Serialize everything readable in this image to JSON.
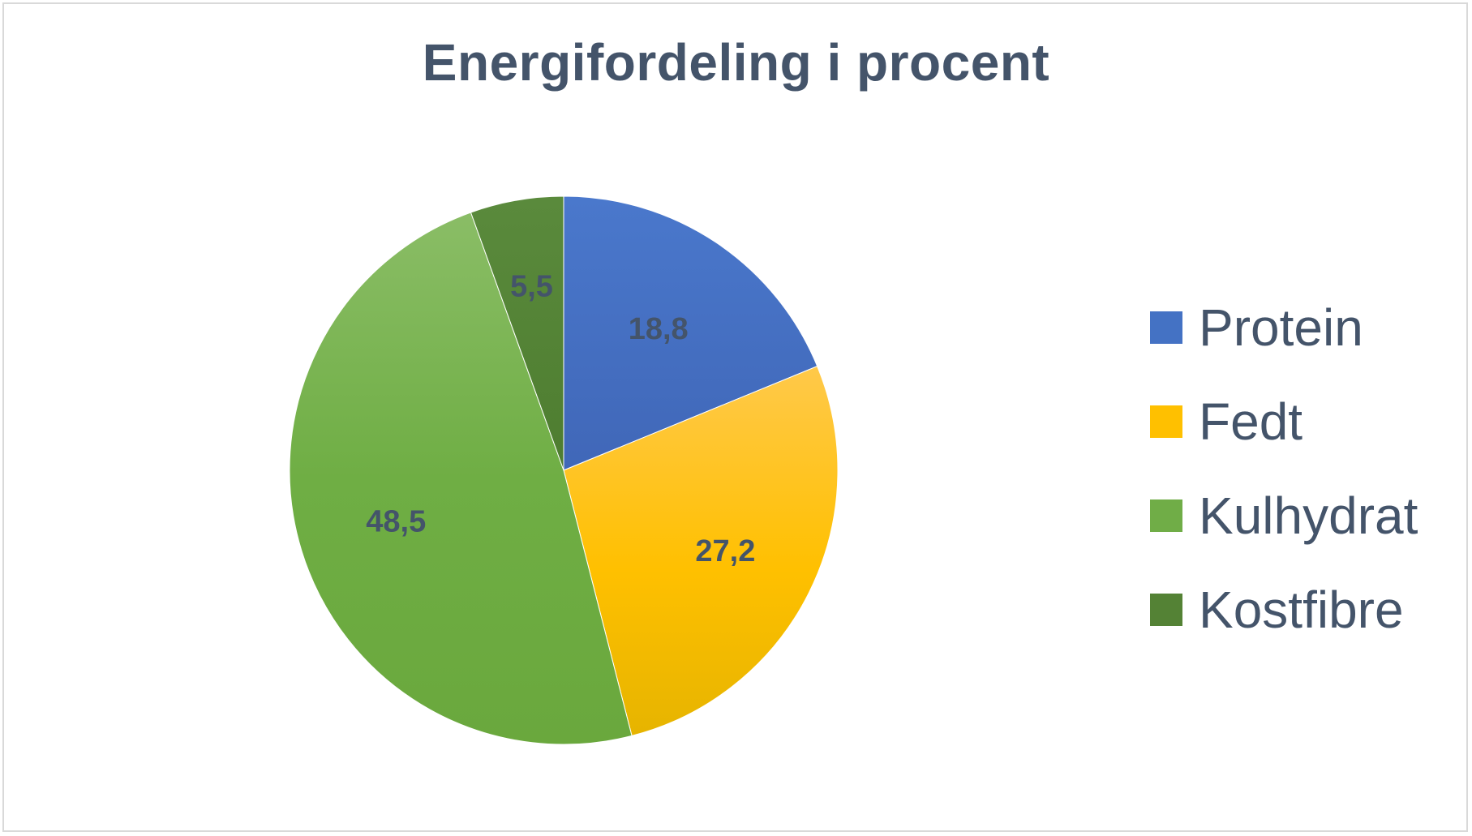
{
  "chart_data": {
    "type": "pie",
    "title": "Energifordeling i procent",
    "categories": [
      "Protein",
      "Fedt",
      "Kulhydrat",
      "Kostfibre"
    ],
    "values": [
      18.8,
      27.2,
      48.5,
      5.5
    ],
    "data_labels": [
      "18,8",
      "27,2",
      "48,5",
      "5,5"
    ],
    "colors": [
      "#4472c4",
      "#ffc000",
      "#70ad47",
      "#548235"
    ],
    "legend_position": "right",
    "start_angle": "12 o'clock, clockwise"
  }
}
